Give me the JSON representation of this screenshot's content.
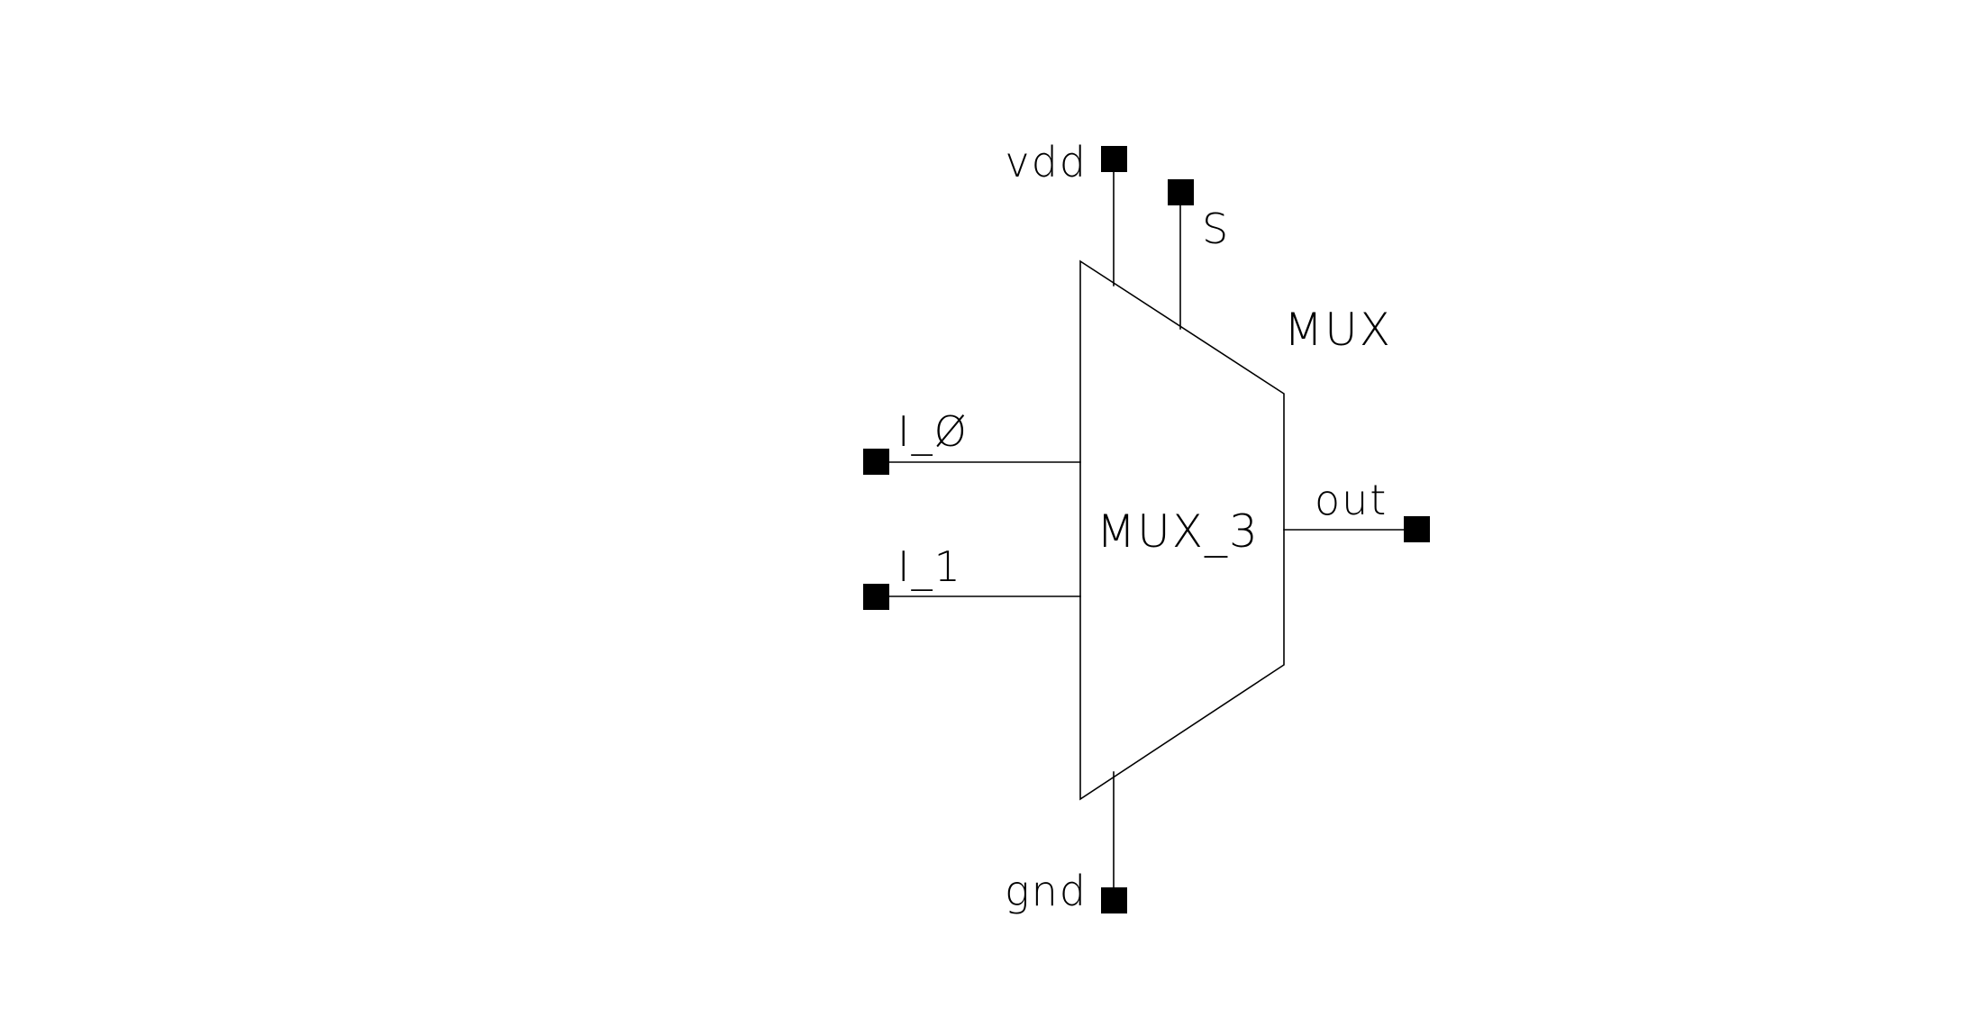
{
  "schematic": {
    "cell_name": "MUX",
    "instance_name": "MUX_3",
    "pins": {
      "vdd": "vdd",
      "s": "S",
      "i0": "I_Ø",
      "i1": "I_1",
      "out": "out",
      "gnd": "gnd"
    }
  },
  "colors": {
    "background": "#ffffff",
    "line": "#000000"
  }
}
